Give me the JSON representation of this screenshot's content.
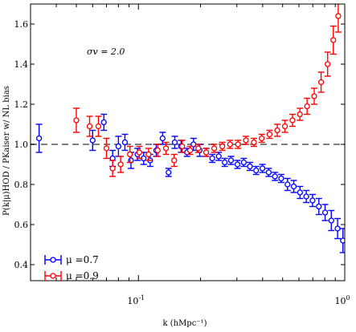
{
  "chart_data": {
    "type": "scatter",
    "xscale": "log",
    "xlim": [
      0.03,
      1.0
    ],
    "ylim": [
      0.32,
      1.7
    ],
    "xticks": [
      {
        "value": 0.1,
        "label": "10",
        "exp": "-1"
      },
      {
        "value": 1.0,
        "label": "10",
        "exp": "0"
      }
    ],
    "yticks": [
      {
        "value": 0.4,
        "label": "0.4"
      },
      {
        "value": 0.6,
        "label": "0.6"
      },
      {
        "value": 0.8,
        "label": "0.8"
      },
      {
        "value": 1.0,
        "label": "1.0"
      },
      {
        "value": 1.2,
        "label": "1.2"
      },
      {
        "value": 1.4,
        "label": "1.4"
      },
      {
        "value": 1.6,
        "label": "1.6"
      }
    ],
    "xlabel": "k (hMpc⁻¹)",
    "ylabel": "P(k|μ)HOD / PKaiser w/ NL bias",
    "annotation": "σv = 2.0",
    "reference_line": {
      "y": 1.0,
      "style": "dashed",
      "color": "#808080"
    },
    "legend": {
      "position": "bottom-left"
    },
    "series": [
      {
        "name": "μ =0.7",
        "color": "#0000ff",
        "points": [
          [
            0.033,
            1.03,
            0.07
          ],
          [
            0.06,
            1.02,
            0.05
          ],
          [
            0.068,
            1.11,
            0.04
          ],
          [
            0.075,
            0.93,
            0.04
          ],
          [
            0.08,
            0.99,
            0.05
          ],
          [
            0.086,
            1.01,
            0.04
          ],
          [
            0.092,
            0.92,
            0.04
          ],
          [
            0.099,
            0.95,
            0.03
          ],
          [
            0.106,
            0.93,
            0.03
          ],
          [
            0.114,
            0.92,
            0.03
          ],
          [
            0.122,
            0.97,
            0.03
          ],
          [
            0.131,
            1.03,
            0.03
          ],
          [
            0.14,
            0.86,
            0.02
          ],
          [
            0.15,
            1.01,
            0.03
          ],
          [
            0.161,
            0.99,
            0.03
          ],
          [
            0.172,
            0.96,
            0.02
          ],
          [
            0.185,
            1.0,
            0.03
          ],
          [
            0.198,
            0.97,
            0.03
          ],
          [
            0.213,
            0.96,
            0.02
          ],
          [
            0.228,
            0.93,
            0.02
          ],
          [
            0.245,
            0.94,
            0.02
          ],
          [
            0.262,
            0.91,
            0.02
          ],
          [
            0.281,
            0.92,
            0.02
          ],
          [
            0.302,
            0.9,
            0.02
          ],
          [
            0.324,
            0.91,
            0.02
          ],
          [
            0.347,
            0.89,
            0.02
          ],
          [
            0.372,
            0.87,
            0.02
          ],
          [
            0.399,
            0.88,
            0.02
          ],
          [
            0.428,
            0.86,
            0.02
          ],
          [
            0.459,
            0.84,
            0.02
          ],
          [
            0.492,
            0.83,
            0.02
          ],
          [
            0.528,
            0.8,
            0.03
          ],
          [
            0.566,
            0.79,
            0.03
          ],
          [
            0.607,
            0.76,
            0.03
          ],
          [
            0.651,
            0.74,
            0.03
          ],
          [
            0.698,
            0.72,
            0.03
          ],
          [
            0.749,
            0.69,
            0.04
          ],
          [
            0.803,
            0.66,
            0.04
          ],
          [
            0.861,
            0.62,
            0.05
          ],
          [
            0.923,
            0.58,
            0.05
          ],
          [
            0.98,
            0.52,
            0.06
          ]
        ]
      },
      {
        "name": "μ =0.9",
        "color": "#ff0000",
        "points": [
          [
            0.05,
            1.12,
            0.06
          ],
          [
            0.058,
            1.09,
            0.05
          ],
          [
            0.064,
            1.09,
            0.05
          ],
          [
            0.07,
            0.98,
            0.05
          ],
          [
            0.075,
            0.88,
            0.04
          ],
          [
            0.082,
            0.9,
            0.04
          ],
          [
            0.091,
            0.95,
            0.04
          ],
          [
            0.101,
            0.96,
            0.03
          ],
          [
            0.112,
            0.95,
            0.03
          ],
          [
            0.124,
            0.97,
            0.03
          ],
          [
            0.136,
            0.98,
            0.03
          ],
          [
            0.149,
            0.92,
            0.03
          ],
          [
            0.163,
            0.99,
            0.03
          ],
          [
            0.178,
            0.97,
            0.02
          ],
          [
            0.195,
            0.98,
            0.02
          ],
          [
            0.213,
            0.96,
            0.02
          ],
          [
            0.233,
            0.98,
            0.02
          ],
          [
            0.255,
            0.99,
            0.02
          ],
          [
            0.278,
            1.0,
            0.02
          ],
          [
            0.304,
            1.0,
            0.02
          ],
          [
            0.332,
            1.02,
            0.02
          ],
          [
            0.363,
            1.01,
            0.02
          ],
          [
            0.396,
            1.03,
            0.02
          ],
          [
            0.432,
            1.05,
            0.02
          ],
          [
            0.471,
            1.07,
            0.03
          ],
          [
            0.513,
            1.09,
            0.03
          ],
          [
            0.558,
            1.12,
            0.03
          ],
          [
            0.606,
            1.15,
            0.03
          ],
          [
            0.657,
            1.19,
            0.04
          ],
          [
            0.711,
            1.24,
            0.04
          ],
          [
            0.768,
            1.31,
            0.05
          ],
          [
            0.826,
            1.4,
            0.06
          ],
          [
            0.88,
            1.52,
            0.07
          ],
          [
            0.93,
            1.64,
            0.08
          ]
        ]
      }
    ]
  }
}
